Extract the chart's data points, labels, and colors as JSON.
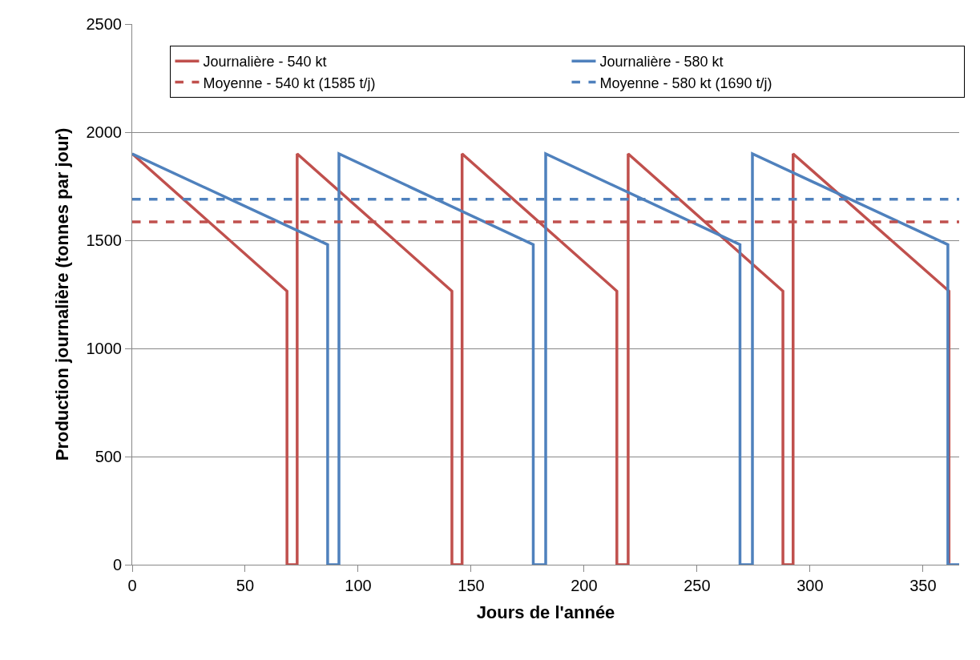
{
  "chart_data": {
    "type": "line",
    "xlabel": "Jours de l'année",
    "ylabel": "Production journalière (tonnes par jour)",
    "xlim": [
      0,
      366
    ],
    "xticks": [
      0,
      50,
      100,
      150,
      200,
      250,
      300,
      350
    ],
    "ylim": [
      0,
      2500
    ],
    "yticks": [
      0,
      500,
      1000,
      1500,
      2000,
      2500
    ],
    "grid": "y",
    "legend": "top",
    "marker": "none",
    "line_style": "solid",
    "series": [
      {
        "name": "Journalière - 540 kt",
        "color": "#c0504d",
        "x": [
          0,
          68.5,
          68.5,
          73,
          73,
          141.5,
          141.5,
          146,
          146,
          214.5,
          214.5,
          219.5,
          219.5,
          288,
          288,
          292.5,
          292.5,
          361.5,
          361.5
        ],
        "values": [
          1900,
          1265,
          0,
          0,
          1900,
          1265,
          0,
          0,
          1900,
          1265,
          0,
          0,
          1900,
          1265,
          0,
          0,
          1900,
          1265,
          0
        ]
      },
      {
        "name": "Journalière - 580 kt",
        "color": "#4f81bd",
        "x": [
          0,
          86.5,
          86.5,
          91.5,
          91.5,
          177.5,
          177.5,
          183,
          183,
          269,
          269,
          274.5,
          274.5,
          361,
          361,
          366
        ],
        "values": [
          1900,
          1480,
          0,
          0,
          1900,
          1480,
          0,
          0,
          1900,
          1480,
          0,
          0,
          1900,
          1480,
          0,
          0
        ]
      },
      {
        "name": "Moyenne - 540 kt (1585 t/j)",
        "color": "#c0504d",
        "line_style": "dashed",
        "x": [
          0,
          366
        ],
        "values": [
          1585,
          1585
        ]
      },
      {
        "name": "Moyenne - 580 kt (1690 t/j)",
        "color": "#4f81bd",
        "line_style": "dashed",
        "x": [
          0,
          366
        ],
        "values": [
          1690,
          1690
        ]
      }
    ]
  }
}
